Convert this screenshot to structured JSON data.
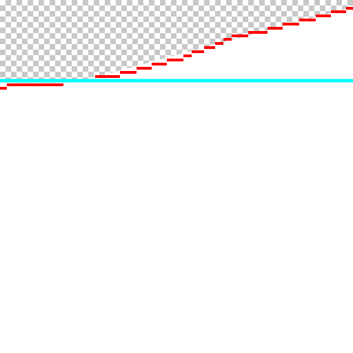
{
  "canvas": {
    "background_color": "#ffffff",
    "transparency_checker": {
      "light_color": "#ffffff",
      "dark_color": "#c8c8c8"
    }
  },
  "selection": {
    "guide_color": "#00ffff",
    "edge_color": "#ff0000",
    "edge_style": "stepped diagonal"
  }
}
